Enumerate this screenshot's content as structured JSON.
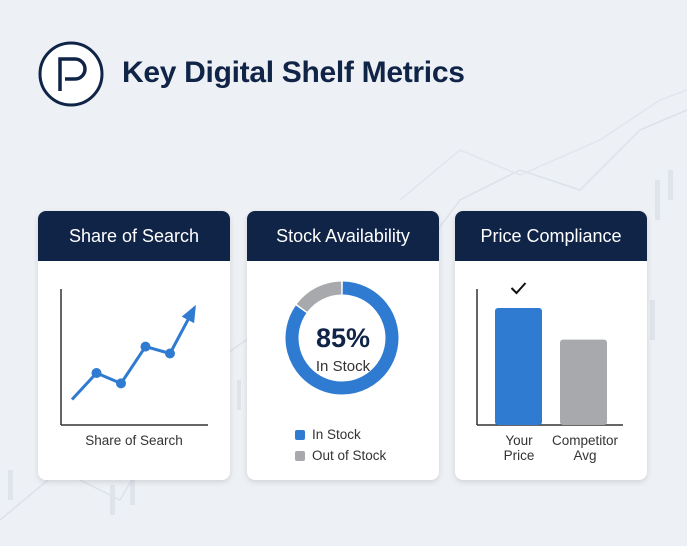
{
  "header": {
    "title": "Key Digital Shelf Metrics",
    "logo_letter": "P"
  },
  "colors": {
    "navy": "#0f2447",
    "blue": "#2f7bd1",
    "gray": "#a7a9ac"
  },
  "cards": [
    {
      "title": "Share of Search",
      "axis_label": "Share of Search"
    },
    {
      "title": "Stock Availability",
      "value": "85%",
      "value_label": "In Stock",
      "legend": [
        "In Stock",
        "Out of Stock"
      ]
    },
    {
      "title": "Price Compliance",
      "categories": [
        "Your Price",
        "Competitor Avg"
      ]
    }
  ],
  "chart_data": [
    {
      "type": "line",
      "title": "Share of Search",
      "xlabel": "Share of Search",
      "x": [
        1,
        2,
        3,
        4,
        5,
        6
      ],
      "values": [
        10,
        33,
        24,
        56,
        50,
        90
      ],
      "ylim": [
        0,
        100
      ],
      "trend": "up-arrow"
    },
    {
      "type": "pie",
      "title": "Stock Availability",
      "categories": [
        "In Stock",
        "Out of Stock"
      ],
      "values": [
        85,
        15
      ],
      "donut": true
    },
    {
      "type": "bar",
      "title": "Price Compliance",
      "categories": [
        "Your Price",
        "Competitor Avg"
      ],
      "values": [
        100,
        73
      ],
      "ylim": [
        0,
        115
      ],
      "annotation": "check on Your Price"
    }
  ]
}
